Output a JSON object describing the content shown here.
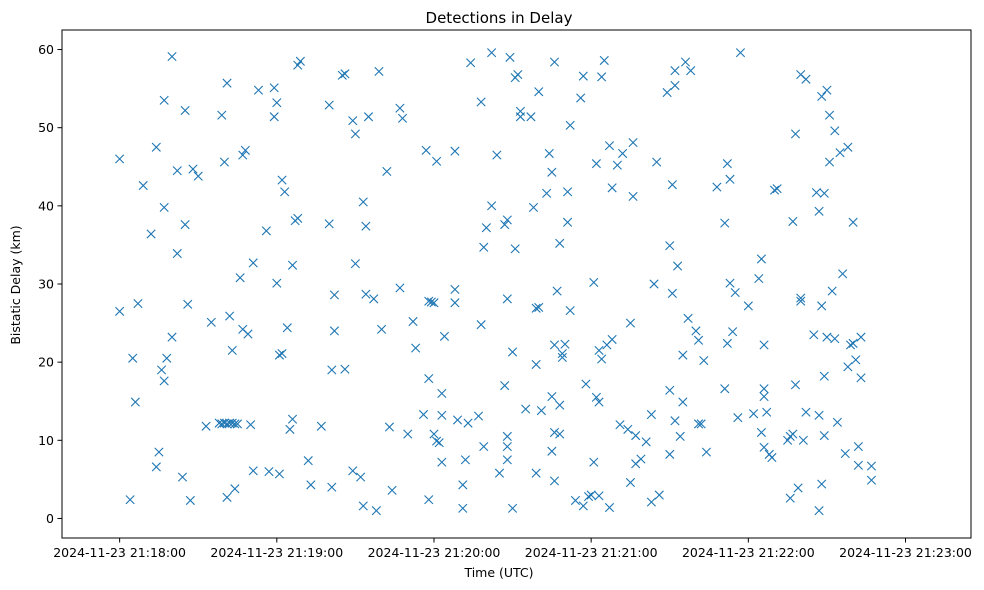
{
  "chart_data": {
    "type": "scatter",
    "title": "Detections in Delay",
    "xlabel": "Time (UTC)",
    "ylabel": "Bistatic Delay (km)",
    "marker": "x",
    "color": "#1f77b4",
    "xlim_seconds": [
      -22,
      325
    ],
    "ylim": [
      -2.5,
      62.5
    ],
    "x_ticks": [
      {
        "value": 0,
        "label": "2024-11-23 21:18:00"
      },
      {
        "value": 60,
        "label": "2024-11-23 21:19:00"
      },
      {
        "value": 120,
        "label": "2024-11-23 21:20:00"
      },
      {
        "value": 180,
        "label": "2024-11-23 21:21:00"
      },
      {
        "value": 240,
        "label": "2024-11-23 21:22:00"
      },
      {
        "value": 300,
        "label": "2024-11-23 21:23:00"
      }
    ],
    "y_ticks": [
      0,
      10,
      20,
      30,
      40,
      50,
      60
    ],
    "x_unit_note": "seconds after 2024-11-23 21:18:00",
    "points": [
      [
        0,
        46.0
      ],
      [
        0,
        26.5
      ],
      [
        4,
        2.4
      ],
      [
        5,
        20.5
      ],
      [
        6,
        14.9
      ],
      [
        7,
        27.5
      ],
      [
        9,
        42.6
      ],
      [
        12,
        36.4
      ],
      [
        14,
        47.5
      ],
      [
        14,
        6.6
      ],
      [
        15,
        8.5
      ],
      [
        16,
        19.0
      ],
      [
        17,
        53.5
      ],
      [
        17,
        39.8
      ],
      [
        17,
        17.6
      ],
      [
        18,
        20.5
      ],
      [
        20,
        59.1
      ],
      [
        20,
        23.2
      ],
      [
        22,
        44.5
      ],
      [
        22,
        33.9
      ],
      [
        24,
        5.3
      ],
      [
        25,
        52.2
      ],
      [
        25,
        37.6
      ],
      [
        26,
        27.4
      ],
      [
        27,
        2.3
      ],
      [
        28,
        44.7
      ],
      [
        30,
        43.8
      ],
      [
        33,
        11.8
      ],
      [
        35,
        25.1
      ],
      [
        38,
        12.2
      ],
      [
        39,
        12.1
      ],
      [
        39,
        51.6
      ],
      [
        40,
        45.6
      ],
      [
        40,
        12.2
      ],
      [
        41,
        12.1
      ],
      [
        41,
        55.7
      ],
      [
        41,
        2.7
      ],
      [
        42,
        12.2
      ],
      [
        42,
        25.9
      ],
      [
        43,
        21.5
      ],
      [
        43,
        12.2
      ],
      [
        44,
        12.1
      ],
      [
        44,
        3.8
      ],
      [
        45,
        12.1
      ],
      [
        46,
        30.8
      ],
      [
        47,
        46.5
      ],
      [
        47,
        24.2
      ],
      [
        48,
        47.1
      ],
      [
        49,
        23.6
      ],
      [
        50,
        12.0
      ],
      [
        51,
        6.1
      ],
      [
        51,
        32.7
      ],
      [
        53,
        54.8
      ],
      [
        56,
        36.8
      ],
      [
        57,
        6.0
      ],
      [
        59,
        51.4
      ],
      [
        59,
        55.1
      ],
      [
        60,
        53.2
      ],
      [
        60,
        30.1
      ],
      [
        61,
        5.7
      ],
      [
        61,
        20.9
      ],
      [
        62,
        43.3
      ],
      [
        62,
        21.1
      ],
      [
        63,
        41.8
      ],
      [
        64,
        24.4
      ],
      [
        65,
        11.4
      ],
      [
        66,
        12.7
      ],
      [
        66,
        32.4
      ],
      [
        67,
        38.1
      ],
      [
        68,
        38.4
      ],
      [
        68,
        58.0
      ],
      [
        69,
        58.5
      ],
      [
        72,
        7.4
      ],
      [
        73,
        4.3
      ],
      [
        77,
        11.8
      ],
      [
        80,
        52.9
      ],
      [
        80,
        37.7
      ],
      [
        81,
        4.0
      ],
      [
        81,
        19.0
      ],
      [
        82,
        28.6
      ],
      [
        82,
        24.0
      ],
      [
        85,
        56.7
      ],
      [
        86,
        56.9
      ],
      [
        86,
        19.1
      ],
      [
        89,
        6.1
      ],
      [
        89,
        50.9
      ],
      [
        90,
        49.2
      ],
      [
        90,
        32.6
      ],
      [
        92,
        5.3
      ],
      [
        93,
        1.6
      ],
      [
        93,
        40.5
      ],
      [
        94,
        37.4
      ],
      [
        94,
        28.7
      ],
      [
        95,
        51.4
      ],
      [
        97,
        28.1
      ],
      [
        98,
        1.0
      ],
      [
        99,
        57.2
      ],
      [
        100,
        24.2
      ],
      [
        102,
        44.4
      ],
      [
        103,
        11.7
      ],
      [
        104,
        3.6
      ],
      [
        107,
        29.5
      ],
      [
        107,
        52.5
      ],
      [
        108,
        51.2
      ],
      [
        110,
        10.8
      ],
      [
        112,
        25.2
      ],
      [
        113,
        21.8
      ],
      [
        116,
        13.3
      ],
      [
        117,
        47.1
      ],
      [
        118,
        27.8
      ],
      [
        118,
        17.9
      ],
      [
        118,
        2.4
      ],
      [
        119,
        27.7
      ],
      [
        120,
        27.6
      ],
      [
        120,
        10.8
      ],
      [
        121,
        45.7
      ],
      [
        121,
        9.9
      ],
      [
        122,
        9.7
      ],
      [
        123,
        16.0
      ],
      [
        123,
        7.2
      ],
      [
        123,
        13.2
      ],
      [
        124,
        23.3
      ],
      [
        128,
        47.0
      ],
      [
        128,
        29.3
      ],
      [
        128,
        27.6
      ],
      [
        129,
        12.6
      ],
      [
        131,
        1.3
      ],
      [
        131,
        4.3
      ],
      [
        132,
        7.5
      ],
      [
        133,
        12.2
      ],
      [
        134,
        58.3
      ],
      [
        137,
        13.1
      ],
      [
        138,
        53.3
      ],
      [
        138,
        24.8
      ],
      [
        139,
        34.7
      ],
      [
        139,
        9.2
      ],
      [
        140,
        37.2
      ],
      [
        142,
        40.0
      ],
      [
        142,
        59.6
      ],
      [
        144,
        46.5
      ],
      [
        145,
        5.8
      ],
      [
        147,
        17.0
      ],
      [
        147,
        37.6
      ],
      [
        148,
        38.2
      ],
      [
        148,
        28.1
      ],
      [
        148,
        10.5
      ],
      [
        148,
        9.2
      ],
      [
        148,
        7.5
      ],
      [
        149,
        59.0
      ],
      [
        150,
        1.3
      ],
      [
        150,
        21.3
      ],
      [
        151,
        56.4
      ],
      [
        151,
        34.5
      ],
      [
        152,
        56.8
      ],
      [
        153,
        51.4
      ],
      [
        153,
        52.1
      ],
      [
        155,
        14.0
      ],
      [
        157,
        51.4
      ],
      [
        158,
        39.8
      ],
      [
        159,
        5.8
      ],
      [
        159,
        26.9
      ],
      [
        159,
        19.7
      ],
      [
        160,
        27.0
      ],
      [
        160,
        54.6
      ],
      [
        161,
        13.8
      ],
      [
        163,
        41.6
      ],
      [
        164,
        46.7
      ],
      [
        165,
        44.3
      ],
      [
        165,
        15.6
      ],
      [
        165,
        8.6
      ],
      [
        166,
        58.4
      ],
      [
        166,
        22.2
      ],
      [
        166,
        11.0
      ],
      [
        166,
        4.8
      ],
      [
        167,
        29.1
      ],
      [
        168,
        35.2
      ],
      [
        168,
        10.8
      ],
      [
        168,
        14.5
      ],
      [
        169,
        21.1
      ],
      [
        169,
        20.6
      ],
      [
        170,
        22.3
      ],
      [
        171,
        37.9
      ],
      [
        171,
        41.8
      ],
      [
        172,
        26.6
      ],
      [
        172,
        50.3
      ],
      [
        174,
        2.3
      ],
      [
        176,
        53.8
      ],
      [
        177,
        56.6
      ],
      [
        177,
        1.6
      ],
      [
        178,
        17.2
      ],
      [
        179,
        2.8
      ],
      [
        180,
        3.0
      ],
      [
        181,
        7.2
      ],
      [
        181,
        30.2
      ],
      [
        182,
        45.4
      ],
      [
        182,
        15.5
      ],
      [
        183,
        21.5
      ],
      [
        183,
        14.9
      ],
      [
        183,
        2.9
      ],
      [
        184,
        20.4
      ],
      [
        184,
        56.5
      ],
      [
        185,
        58.6
      ],
      [
        186,
        22.2
      ],
      [
        187,
        1.4
      ],
      [
        187,
        47.7
      ],
      [
        188,
        42.3
      ],
      [
        188,
        22.9
      ],
      [
        190,
        45.2
      ],
      [
        191,
        12.0
      ],
      [
        192,
        46.7
      ],
      [
        194,
        11.4
      ],
      [
        195,
        4.6
      ],
      [
        195,
        25.0
      ],
      [
        196,
        48.1
      ],
      [
        196,
        41.2
      ],
      [
        197,
        7.0
      ],
      [
        197,
        10.6
      ],
      [
        199,
        7.6
      ],
      [
        201,
        9.8
      ],
      [
        203,
        2.1
      ],
      [
        203,
        13.3
      ],
      [
        204,
        30.0
      ],
      [
        205,
        45.6
      ],
      [
        206,
        3.0
      ],
      [
        209,
        54.5
      ],
      [
        210,
        34.9
      ],
      [
        210,
        16.4
      ],
      [
        210,
        8.2
      ],
      [
        211,
        42.7
      ],
      [
        211,
        28.8
      ],
      [
        212,
        55.4
      ],
      [
        212,
        57.3
      ],
      [
        212,
        12.5
      ],
      [
        213,
        32.3
      ],
      [
        214,
        10.5
      ],
      [
        215,
        14.9
      ],
      [
        215,
        20.9
      ],
      [
        216,
        58.4
      ],
      [
        217,
        25.6
      ],
      [
        218,
        57.3
      ],
      [
        220,
        24.0
      ],
      [
        221,
        22.8
      ],
      [
        221,
        12.1
      ],
      [
        222,
        12.1
      ],
      [
        223,
        20.2
      ],
      [
        224,
        8.5
      ],
      [
        228,
        42.4
      ],
      [
        231,
        37.8
      ],
      [
        231,
        16.6
      ],
      [
        232,
        45.4
      ],
      [
        232,
        22.4
      ],
      [
        233,
        43.4
      ],
      [
        233,
        30.1
      ],
      [
        234,
        23.9
      ],
      [
        235,
        28.9
      ],
      [
        236,
        12.9
      ],
      [
        237,
        59.6
      ],
      [
        240,
        27.2
      ],
      [
        242,
        13.4
      ],
      [
        244,
        30.7
      ],
      [
        245,
        33.2
      ],
      [
        245,
        11.0
      ],
      [
        246,
        9.1
      ],
      [
        246,
        22.2
      ],
      [
        246,
        16.6
      ],
      [
        246,
        15.6
      ],
      [
        247,
        13.6
      ],
      [
        248,
        8.2
      ],
      [
        249,
        7.8
      ],
      [
        250,
        42.0
      ],
      [
        251,
        42.2
      ],
      [
        255,
        10.0
      ],
      [
        256,
        10.5
      ],
      [
        256,
        2.6
      ],
      [
        257,
        10.8
      ],
      [
        257,
        38.0
      ],
      [
        258,
        49.2
      ],
      [
        258,
        17.1
      ],
      [
        259,
        3.9
      ],
      [
        260,
        56.8
      ],
      [
        260,
        28.2
      ],
      [
        260,
        27.8
      ],
      [
        261,
        10.0
      ],
      [
        262,
        56.2
      ],
      [
        262,
        13.6
      ],
      [
        265,
        23.5
      ],
      [
        266,
        41.7
      ],
      [
        267,
        39.3
      ],
      [
        267,
        13.2
      ],
      [
        267,
        1.0
      ],
      [
        268,
        54.0
      ],
      [
        268,
        4.4
      ],
      [
        268,
        27.2
      ],
      [
        269,
        18.2
      ],
      [
        269,
        41.6
      ],
      [
        269,
        10.6
      ],
      [
        270,
        54.8
      ],
      [
        270,
        23.2
      ],
      [
        271,
        45.6
      ],
      [
        271,
        51.6
      ],
      [
        272,
        29.1
      ],
      [
        273,
        49.6
      ],
      [
        273,
        23.0
      ],
      [
        274,
        12.3
      ],
      [
        275,
        46.8
      ],
      [
        276,
        31.3
      ],
      [
        277,
        8.3
      ],
      [
        278,
        47.5
      ],
      [
        278,
        19.4
      ],
      [
        279,
        22.2
      ],
      [
        280,
        37.9
      ],
      [
        280,
        22.4
      ],
      [
        281,
        20.3
      ],
      [
        282,
        9.2
      ],
      [
        282,
        6.8
      ],
      [
        283,
        18.0
      ],
      [
        283,
        23.2
      ],
      [
        287,
        6.7
      ],
      [
        287,
        4.9
      ]
    ]
  }
}
